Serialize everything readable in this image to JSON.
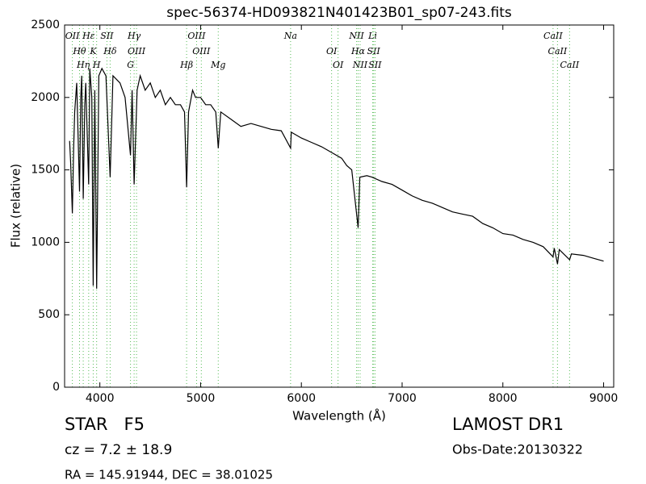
{
  "chart_data": {
    "type": "line",
    "title": "spec-56374-HD093821N401423B01_sp07-243.fits",
    "xlabel": "Wavelength (Å)",
    "ylabel": "Flux (relative)",
    "color": "#000000",
    "line_color": "#55bb55",
    "xlim": [
      3650,
      9100
    ],
    "ylim": [
      0,
      2500
    ],
    "xticks": [
      4000,
      5000,
      6000,
      7000,
      8000,
      9000
    ],
    "yticks": [
      0,
      500,
      1000,
      1500,
      2000,
      2500
    ],
    "x": [
      3700,
      3710,
      3727,
      3740,
      3750,
      3770,
      3798,
      3810,
      3820,
      3835,
      3850,
      3860,
      3889,
      3900,
      3920,
      3934,
      3950,
      3968,
      3990,
      4020,
      4060,
      4102,
      4130,
      4200,
      4250,
      4304,
      4320,
      4340,
      4370,
      4400,
      4450,
      4500,
      4550,
      4600,
      4650,
      4700,
      4750,
      4800,
      4840,
      4861,
      4880,
      4920,
      4950,
      5000,
      5050,
      5100,
      5150,
      5175,
      5200,
      5300,
      5400,
      5500,
      5600,
      5700,
      5800,
      5893,
      5900,
      6000,
      6100,
      6200,
      6300,
      6400,
      6450,
      6500,
      6563,
      6580,
      6650,
      6700,
      6800,
      6900,
      7000,
      7100,
      7200,
      7300,
      7400,
      7500,
      7600,
      7700,
      7800,
      7900,
      8000,
      8100,
      8200,
      8300,
      8400,
      8498,
      8510,
      8542,
      8560,
      8662,
      8680,
      8800,
      8900,
      9000
    ],
    "values": [
      1700,
      1550,
      1200,
      1650,
      1900,
      2100,
      1350,
      2000,
      2150,
      1300,
      1950,
      2100,
      1400,
      2200,
      2000,
      700,
      2050,
      680,
      2150,
      2200,
      2150,
      1450,
      2150,
      2100,
      2000,
      1600,
      2050,
      1400,
      2050,
      2150,
      2050,
      2100,
      2000,
      2050,
      1950,
      2000,
      1950,
      1950,
      1900,
      1380,
      1900,
      2050,
      2000,
      2000,
      1950,
      1950,
      1900,
      1650,
      1900,
      1850,
      1800,
      1820,
      1800,
      1780,
      1770,
      1650,
      1760,
      1720,
      1690,
      1660,
      1620,
      1580,
      1530,
      1500,
      1100,
      1450,
      1460,
      1450,
      1420,
      1400,
      1360,
      1320,
      1290,
      1270,
      1240,
      1210,
      1195,
      1180,
      1130,
      1100,
      1060,
      1050,
      1020,
      1000,
      970,
      900,
      960,
      850,
      950,
      880,
      920,
      910,
      890,
      870
    ],
    "lines": [
      {
        "name": "OII",
        "wavelength": 3727
      },
      {
        "name": "Hθ",
        "wavelength": 3798
      },
      {
        "name": "Hη",
        "wavelength": 3835
      },
      {
        "name": "Hε",
        "wavelength": 3889
      },
      {
        "name": "K",
        "wavelength": 3934
      },
      {
        "name": "H",
        "wavelength": 3968
      },
      {
        "name": "SII",
        "wavelength": 4070
      },
      {
        "name": "Hδ",
        "wavelength": 4102
      },
      {
        "name": "G",
        "wavelength": 4304
      },
      {
        "name": "Hγ",
        "wavelength": 4340
      },
      {
        "name": "OIII",
        "wavelength": 4364
      },
      {
        "name": "Hβ",
        "wavelength": 4861
      },
      {
        "name": "OIII",
        "wavelength": 4960
      },
      {
        "name": "OIII",
        "wavelength": 5007
      },
      {
        "name": "Mg",
        "wavelength": 5175
      },
      {
        "name": "Na",
        "wavelength": 5893
      },
      {
        "name": "OI",
        "wavelength": 6300
      },
      {
        "name": "OI",
        "wavelength": 6364
      },
      {
        "name": "NII",
        "wavelength": 6548
      },
      {
        "name": "Hα",
        "wavelength": 6563
      },
      {
        "name": "NII",
        "wavelength": 6583
      },
      {
        "name": "Li",
        "wavelength": 6708
      },
      {
        "name": "SII",
        "wavelength": 6717
      },
      {
        "name": "SII",
        "wavelength": 6731
      },
      {
        "name": "CaII",
        "wavelength": 8498
      },
      {
        "name": "CaII",
        "wavelength": 8542
      },
      {
        "name": "CaII",
        "wavelength": 8662
      }
    ]
  },
  "info": {
    "object": "STAR   F5",
    "cz": "cz = 7.2 ± 18.9",
    "coords": "RA = 145.91944, DEC = 38.01025",
    "survey": "LAMOST DR1",
    "date": "Obs-Date:20130322"
  }
}
